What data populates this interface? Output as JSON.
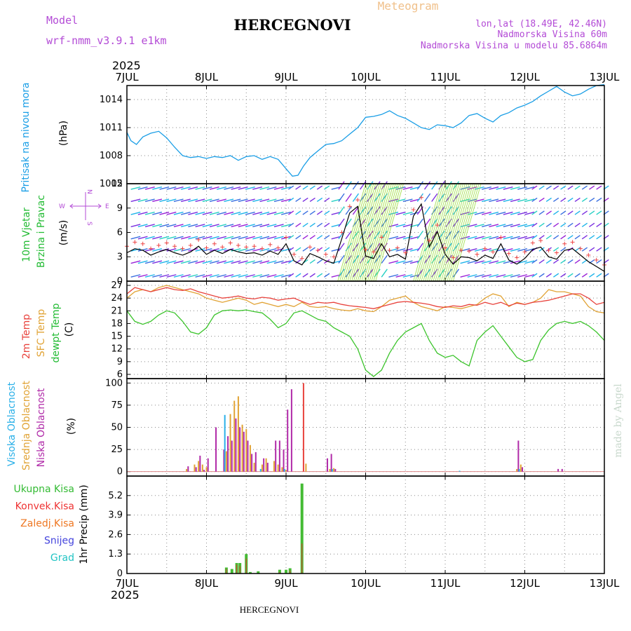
{
  "header": {
    "model_label": "Model",
    "model_name": "wrf-nmm_v3.9.1 e1km",
    "title": "HERCEGNOVI",
    "subtitle": "Meteogram",
    "lonlat": "lon,lat (18.49E, 42.46N)",
    "elevation": "Nadmorska Visina 60m",
    "model_elevation": "Nadmorska Visina u modelu 85.6864m"
  },
  "footer": {
    "station": "HERCEGNOVI",
    "credit": "made by Angel"
  },
  "time_axis": {
    "year": "2025",
    "labels": [
      "7JUL",
      "8JUL",
      "9JUL",
      "10JUL",
      "11JUL",
      "12JUL",
      "13JUL"
    ]
  },
  "colors": {
    "pressure": "#1a9ee6",
    "temp": "#e8423c",
    "sfc_temp": "#e1a335",
    "dewpoint": "#3cc42c",
    "wind_speed": "#000000",
    "wind_max": "#ee4444",
    "cloud_high": "#2ab0e8",
    "cloud_mid": "#e1a335",
    "cloud_low": "#b02aa8",
    "precip_total": "#44bb33",
    "precip_conv": "#ee3333"
  },
  "panels": {
    "pressure": {
      "label": "Pritisak na nivou mora",
      "unit": "(hPa)",
      "ticks": [
        "1014",
        "1011",
        "1008",
        "1005"
      ]
    },
    "wind": {
      "label1": "10m Vjetar",
      "label2": "Brzina i Pravac",
      "unit": "(m/s)",
      "ticks": [
        "12",
        "9",
        "6",
        "3",
        "0"
      ],
      "compass": [
        "N",
        "S",
        "W",
        "E"
      ]
    },
    "temperature": {
      "label1": "2m Temp",
      "label2": "SFC Temp",
      "label3": "dewpt Temp",
      "unit": "(C)",
      "ticks": [
        "27",
        "24",
        "21",
        "18",
        "15",
        "12",
        "9",
        "6"
      ]
    },
    "clouds": {
      "label1": "Visoka Oblacnost",
      "label2": "Srednja Oblacnost",
      "label3": "Niska Oblacnost",
      "unit": "(%)",
      "ticks": [
        "100",
        "75",
        "50",
        "25",
        "0"
      ]
    },
    "precip": {
      "legend": [
        "Ukupna Kisa",
        "Konvek.Kisa",
        "Zaledj.Kisa",
        "Snijeg",
        "Grad"
      ],
      "legend_colors": [
        "#33bb33",
        "#ee3333",
        "#ee7722",
        "#4444dd",
        "#22c4c4"
      ],
      "unit": "1hr Precip (mm)",
      "ticks": [
        "5.2",
        "3.9",
        "2.6",
        "1.3",
        "0"
      ]
    }
  },
  "chart_data": [
    {
      "type": "line",
      "title": "Pritisak na nivou mora",
      "ylabel": "(hPa)",
      "ylim": [
        1005,
        1015.5
      ],
      "x": [
        7.0,
        7.05,
        7.12,
        7.2,
        7.3,
        7.4,
        7.5,
        7.6,
        7.7,
        7.8,
        7.9,
        8.0,
        8.1,
        8.2,
        8.3,
        8.4,
        8.5,
        8.6,
        8.7,
        8.8,
        8.9,
        9.0,
        9.08,
        9.15,
        9.22,
        9.3,
        9.4,
        9.5,
        9.6,
        9.7,
        9.8,
        9.9,
        10.0,
        10.1,
        10.2,
        10.3,
        10.4,
        10.5,
        10.6,
        10.7,
        10.8,
        10.9,
        11.0,
        11.1,
        11.2,
        11.3,
        11.4,
        11.5,
        11.6,
        11.7,
        11.8,
        11.9,
        12.0,
        12.1,
        12.2,
        12.3,
        12.4,
        12.5,
        12.6,
        12.7,
        12.8,
        12.9,
        13.0
      ],
      "y": [
        1010.5,
        1009.6,
        1009.2,
        1010.0,
        1010.4,
        1010.6,
        1009.9,
        1008.9,
        1008.0,
        1007.8,
        1007.9,
        1007.7,
        1007.9,
        1007.8,
        1008.0,
        1007.5,
        1007.9,
        1008.0,
        1007.6,
        1007.9,
        1007.6,
        1006.6,
        1005.8,
        1005.9,
        1006.9,
        1007.8,
        1008.5,
        1009.2,
        1009.3,
        1009.6,
        1010.3,
        1011.0,
        1012.1,
        1012.2,
        1012.4,
        1012.8,
        1012.3,
        1012.0,
        1011.5,
        1011.0,
        1010.8,
        1011.3,
        1011.2,
        1011.0,
        1011.5,
        1012.3,
        1012.5,
        1012.0,
        1011.6,
        1012.3,
        1012.6,
        1013.1,
        1013.4,
        1013.8,
        1014.4,
        1014.9,
        1015.4,
        1014.8,
        1014.4,
        1014.6,
        1015.1,
        1015.5,
        1015.6
      ]
    },
    {
      "type": "line",
      "title": "10m Vjetar Brzina i Pravac",
      "ylabel": "(m/s)",
      "ylim": [
        0,
        12
      ],
      "x": [
        7.0,
        7.1,
        7.2,
        7.3,
        7.4,
        7.5,
        7.6,
        7.7,
        7.8,
        7.9,
        8.0,
        8.1,
        8.2,
        8.3,
        8.4,
        8.5,
        8.6,
        8.7,
        8.8,
        8.9,
        9.0,
        9.1,
        9.2,
        9.3,
        9.4,
        9.5,
        9.6,
        9.7,
        9.8,
        9.9,
        10.0,
        10.1,
        10.2,
        10.3,
        10.4,
        10.5,
        10.6,
        10.7,
        10.8,
        10.9,
        11.0,
        11.1,
        11.2,
        11.3,
        11.4,
        11.5,
        11.6,
        11.7,
        11.8,
        11.9,
        12.0,
        12.1,
        12.2,
        12.3,
        12.4,
        12.5,
        12.6,
        12.7,
        12.8,
        12.9,
        13.0
      ],
      "y": [
        3.5,
        4.0,
        3.8,
        3.2,
        3.6,
        3.9,
        3.5,
        3.2,
        3.6,
        4.3,
        3.3,
        3.8,
        3.4,
        3.9,
        3.6,
        3.4,
        3.5,
        3.2,
        3.7,
        3.3,
        4.6,
        2.5,
        2.0,
        3.4,
        3.0,
        2.5,
        2.2,
        5.2,
        8.4,
        9.2,
        3.1,
        2.8,
        4.6,
        3.0,
        3.3,
        2.7,
        8.0,
        9.5,
        4.2,
        6.1,
        3.3,
        2.1,
        3.0,
        2.9,
        2.5,
        3.2,
        2.8,
        4.6,
        2.6,
        2.1,
        2.8,
        3.9,
        4.2,
        3.0,
        2.7,
        3.8,
        4.0,
        3.2,
        2.4,
        1.8,
        1.2
      ]
    },
    {
      "type": "line",
      "title": "2m Temp / SFC Temp / dewpt Temp",
      "ylabel": "(C)",
      "ylim": [
        5,
        28
      ],
      "x": [
        7.0,
        7.1,
        7.2,
        7.3,
        7.4,
        7.5,
        7.6,
        7.7,
        7.8,
        7.9,
        8.0,
        8.1,
        8.2,
        8.3,
        8.4,
        8.5,
        8.6,
        8.7,
        8.8,
        8.9,
        9.0,
        9.1,
        9.2,
        9.3,
        9.4,
        9.5,
        9.6,
        9.7,
        9.8,
        9.9,
        10.0,
        10.1,
        10.2,
        10.3,
        10.4,
        10.5,
        10.6,
        10.7,
        10.8,
        10.9,
        11.0,
        11.1,
        11.2,
        11.3,
        11.4,
        11.5,
        11.6,
        11.7,
        11.8,
        11.9,
        12.0,
        12.1,
        12.2,
        12.3,
        12.4,
        12.5,
        12.6,
        12.7,
        12.8,
        12.9,
        13.0
      ],
      "series": [
        {
          "name": "2m Temp",
          "values": [
            25,
            26.5,
            26,
            25.5,
            26,
            26.5,
            26,
            25.8,
            26.2,
            25.5,
            25,
            24.5,
            24,
            24.2,
            24.5,
            24,
            23.8,
            24.2,
            24,
            23.5,
            23.8,
            24,
            23.2,
            22.5,
            23,
            22.8,
            23,
            22.5,
            22.2,
            22,
            21.8,
            21.5,
            22,
            22.5,
            23,
            23.2,
            23,
            22.8,
            22.5,
            22,
            21.8,
            22.2,
            22,
            22.5,
            22.3,
            23,
            22.5,
            23,
            22.2,
            22.8,
            22.5,
            23,
            23.2,
            23.5,
            24,
            24.5,
            25,
            25,
            24,
            22.5,
            23
          ]
        },
        {
          "name": "SFC Temp",
          "values": [
            24,
            25.5,
            26,
            25.5,
            26.5,
            27,
            26.5,
            26,
            25.5,
            25,
            24,
            23.5,
            23,
            23.5,
            24,
            23.5,
            22.5,
            23,
            22.5,
            22,
            22.5,
            22,
            23,
            22,
            21.8,
            22,
            21.5,
            21.2,
            21,
            21.5,
            21,
            20.8,
            22,
            23.5,
            24,
            24.5,
            23,
            22,
            21.5,
            21,
            22,
            21.8,
            21.5,
            22,
            22.5,
            24,
            25,
            24.5,
            22,
            23,
            22.5,
            23,
            24,
            26,
            25.5,
            25.5,
            25,
            24.5,
            22,
            20.8,
            20.5
          ]
        },
        {
          "name": "dewpt Temp",
          "values": [
            21,
            18.5,
            17.8,
            18.5,
            20,
            21,
            20.5,
            18.5,
            16,
            15.5,
            17,
            20,
            21,
            21.2,
            21,
            21.2,
            20.8,
            20.5,
            19,
            17,
            18,
            20.5,
            21,
            20,
            19,
            18.5,
            17,
            16,
            15,
            12,
            7,
            5.5,
            7,
            11,
            14,
            16,
            17,
            18,
            14,
            11,
            10,
            10.5,
            9,
            8,
            14,
            16,
            17.5,
            15,
            12.5,
            10,
            9,
            9.5,
            14,
            16.5,
            18,
            18.5,
            18,
            18.5,
            17.5,
            16,
            14
          ]
        }
      ]
    },
    {
      "type": "bar",
      "title": "Visoka / Srednja / Niska Oblacnost",
      "ylabel": "(%)",
      "ylim": [
        0,
        100
      ],
      "x": [
        7.75,
        7.85,
        7.9,
        7.95,
        8.0,
        8.1,
        8.2,
        8.25,
        8.3,
        8.35,
        8.4,
        8.45,
        8.5,
        8.55,
        8.6,
        8.7,
        8.75,
        8.85,
        8.9,
        8.95,
        9.0,
        9.05,
        9.2,
        9.25,
        9.5,
        9.55,
        9.6,
        11.2,
        11.9,
        11.95,
        12.4,
        12.45
      ],
      "series": [
        {
          "name": "Visoka Oblacnost",
          "values": [
            0,
            0,
            0,
            0,
            0,
            0,
            0,
            64,
            0,
            0,
            0,
            0,
            0,
            0,
            0,
            3,
            0,
            0,
            0,
            0,
            3,
            0,
            0,
            0,
            0,
            0,
            3,
            1,
            0,
            3,
            0,
            0
          ]
        },
        {
          "name": "Srednja Oblacnost",
          "values": [
            3,
            8,
            12,
            8,
            5,
            0,
            0,
            23,
            65,
            80,
            85,
            53,
            48,
            30,
            10,
            8,
            15,
            12,
            8,
            5,
            2,
            0,
            0,
            9,
            0,
            3,
            4,
            0,
            3,
            8,
            0,
            0
          ]
        },
        {
          "name": "Niska Oblacnost",
          "values": [
            6,
            5,
            18,
            2,
            15,
            50,
            25,
            40,
            35,
            60,
            50,
            45,
            35,
            20,
            22,
            15,
            10,
            35,
            35,
            25,
            70,
            93,
            100,
            0,
            15,
            20,
            3,
            0,
            35,
            5,
            3,
            3
          ]
        }
      ]
    },
    {
      "type": "bar",
      "title": "1hr Precip",
      "ylabel": "1hr Precip (mm)",
      "ylim": [
        0,
        6.5
      ],
      "x": [
        8.25,
        8.32,
        8.38,
        8.42,
        8.5,
        8.55,
        8.65,
        8.92,
        9.0,
        9.05,
        9.2
      ],
      "series": [
        {
          "name": "Ukupna Kisa",
          "values": [
            0.4,
            0.3,
            0.7,
            0.7,
            1.3,
            0.1,
            0.15,
            0.25,
            0.25,
            0.35,
            6.0
          ]
        },
        {
          "name": "Konvek.Kisa",
          "values": [
            0.3,
            0,
            0.6,
            0.5,
            1.0,
            0,
            0,
            0.1,
            0,
            0.2,
            2.0
          ]
        }
      ]
    }
  ]
}
